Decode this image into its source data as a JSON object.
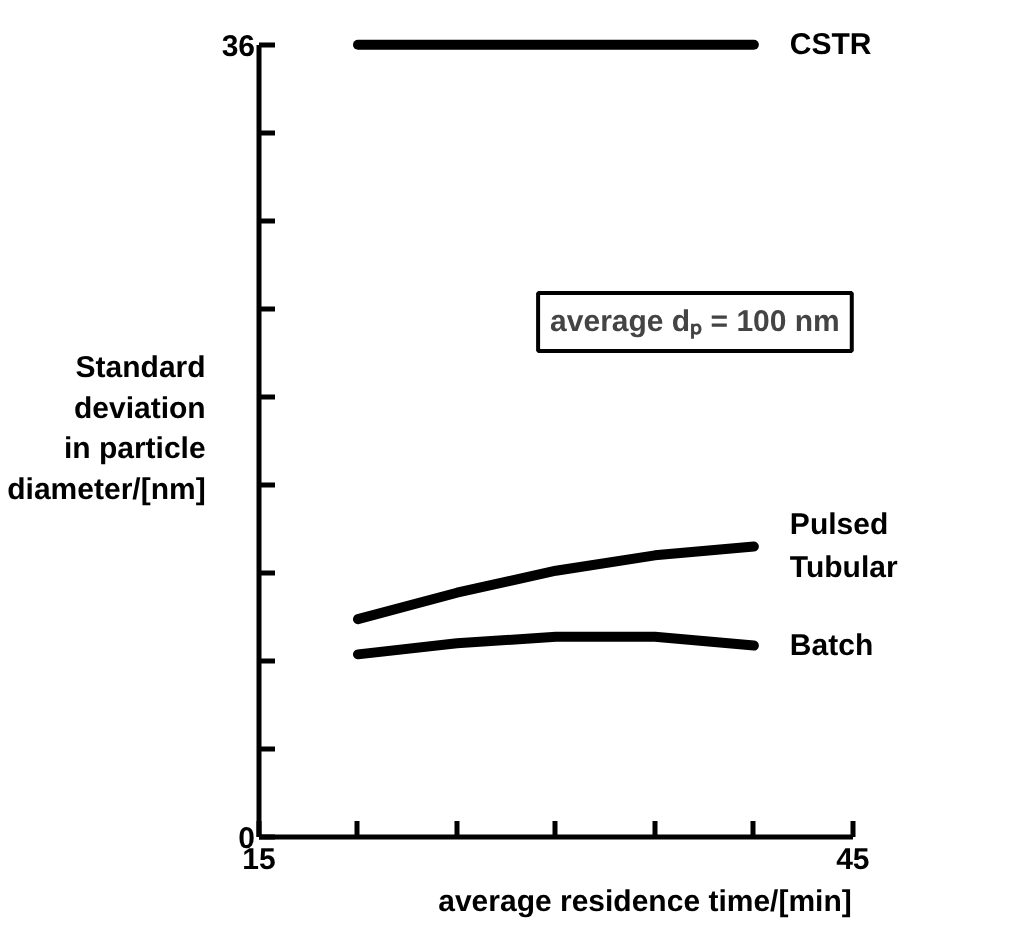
{
  "chart_data": {
    "type": "line",
    "xlabel": "average residence time/[min]",
    "ylabel": "Standard\ndeviation\nin particle\ndiameter/[nm]",
    "x": [
      20,
      25,
      30,
      35,
      40
    ],
    "xlim": [
      15,
      45
    ],
    "ylim": [
      0,
      36
    ],
    "xticks": [
      15,
      {
        "value": 20,
        "label": null
      },
      {
        "value": 25,
        "label": null
      },
      {
        "value": 30,
        "label": null
      },
      {
        "value": 35,
        "label": null
      },
      {
        "value": 40,
        "label": null
      },
      45
    ],
    "yticks": [
      0,
      {
        "value": 4,
        "label": null
      },
      {
        "value": 8,
        "label": null
      },
      {
        "value": 12,
        "label": null
      },
      {
        "value": 16,
        "label": null
      },
      {
        "value": 20,
        "label": null
      },
      {
        "value": 24,
        "label": null
      },
      {
        "value": 28,
        "label": null
      },
      {
        "value": 32,
        "label": null
      },
      36
    ],
    "series": [
      {
        "name": "CSTR",
        "color": "#000000",
        "values": [
          36,
          36,
          36,
          36,
          36
        ]
      },
      {
        "name": "Pulsed\nTubular",
        "color": "#000000",
        "values": [
          9.9,
          11.1,
          12.1,
          12.8,
          13.2
        ]
      },
      {
        "name": "Batch",
        "color": "#000000",
        "values": [
          8.3,
          8.8,
          9.1,
          9.1,
          8.7
        ]
      }
    ],
    "annotations": [
      "average dₚ = 100 nm"
    ],
    "grid": false,
    "legend": false,
    "marker": "none",
    "line_style": "solid"
  }
}
